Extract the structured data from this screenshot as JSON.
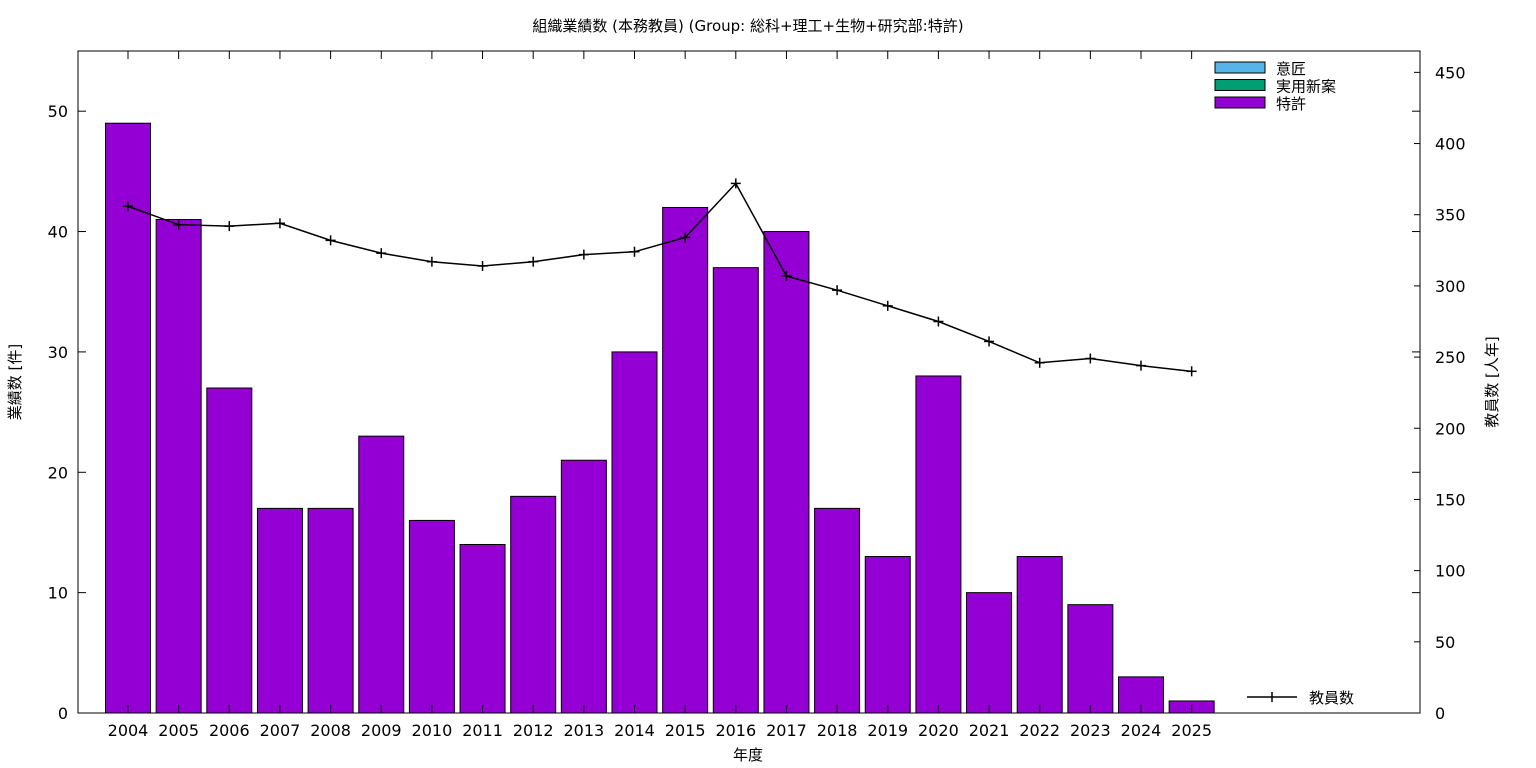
{
  "chart_data": {
    "type": "bar",
    "title": "組織業績数 (本務教員) (Group: 総科+理工+生物+研究部:特許)",
    "xlabel": "年度",
    "ylabel": "業績数 [件]",
    "y2label": "教員数 [人年]",
    "ylim": [
      0,
      55
    ],
    "y2lim": [
      0,
      465
    ],
    "yticks": [
      0,
      10,
      20,
      30,
      40,
      50
    ],
    "y2ticks": [
      0,
      50,
      100,
      150,
      200,
      250,
      300,
      350,
      400,
      450
    ],
    "categories": [
      "2004",
      "2005",
      "2006",
      "2007",
      "2008",
      "2009",
      "2010",
      "2011",
      "2012",
      "2013",
      "2014",
      "2015",
      "2016",
      "2017",
      "2018",
      "2019",
      "2020",
      "2021",
      "2022",
      "2023",
      "2024",
      "2025"
    ],
    "series": [
      {
        "name": "意匠",
        "color": "#56b4e9",
        "values": [
          0,
          0,
          0,
          0,
          0,
          0,
          0,
          0,
          0,
          0,
          0,
          0,
          0,
          0,
          0,
          0,
          0,
          0,
          0,
          0,
          0,
          0
        ]
      },
      {
        "name": "実用新案",
        "color": "#009e73",
        "values": [
          0,
          0,
          0,
          0,
          0,
          0,
          0,
          0,
          0,
          0,
          0,
          0,
          0,
          0,
          0,
          0,
          0,
          0,
          0,
          0,
          0,
          0
        ]
      },
      {
        "name": "特許",
        "color": "#9400d3",
        "values": [
          49,
          41,
          27,
          17,
          17,
          23,
          16,
          14,
          18,
          21,
          30,
          42,
          37,
          40,
          17,
          13,
          28,
          10,
          13,
          9,
          3,
          1
        ]
      }
    ],
    "line_series": {
      "name": "教員数",
      "color": "#000000",
      "axis": "right",
      "values": [
        356,
        343,
        342,
        344,
        332,
        323,
        317,
        314,
        317,
        322,
        324,
        334,
        372,
        307,
        297,
        286,
        275,
        261,
        246,
        249,
        244,
        240
      ]
    },
    "legend_position": "top-right",
    "grid": false
  }
}
